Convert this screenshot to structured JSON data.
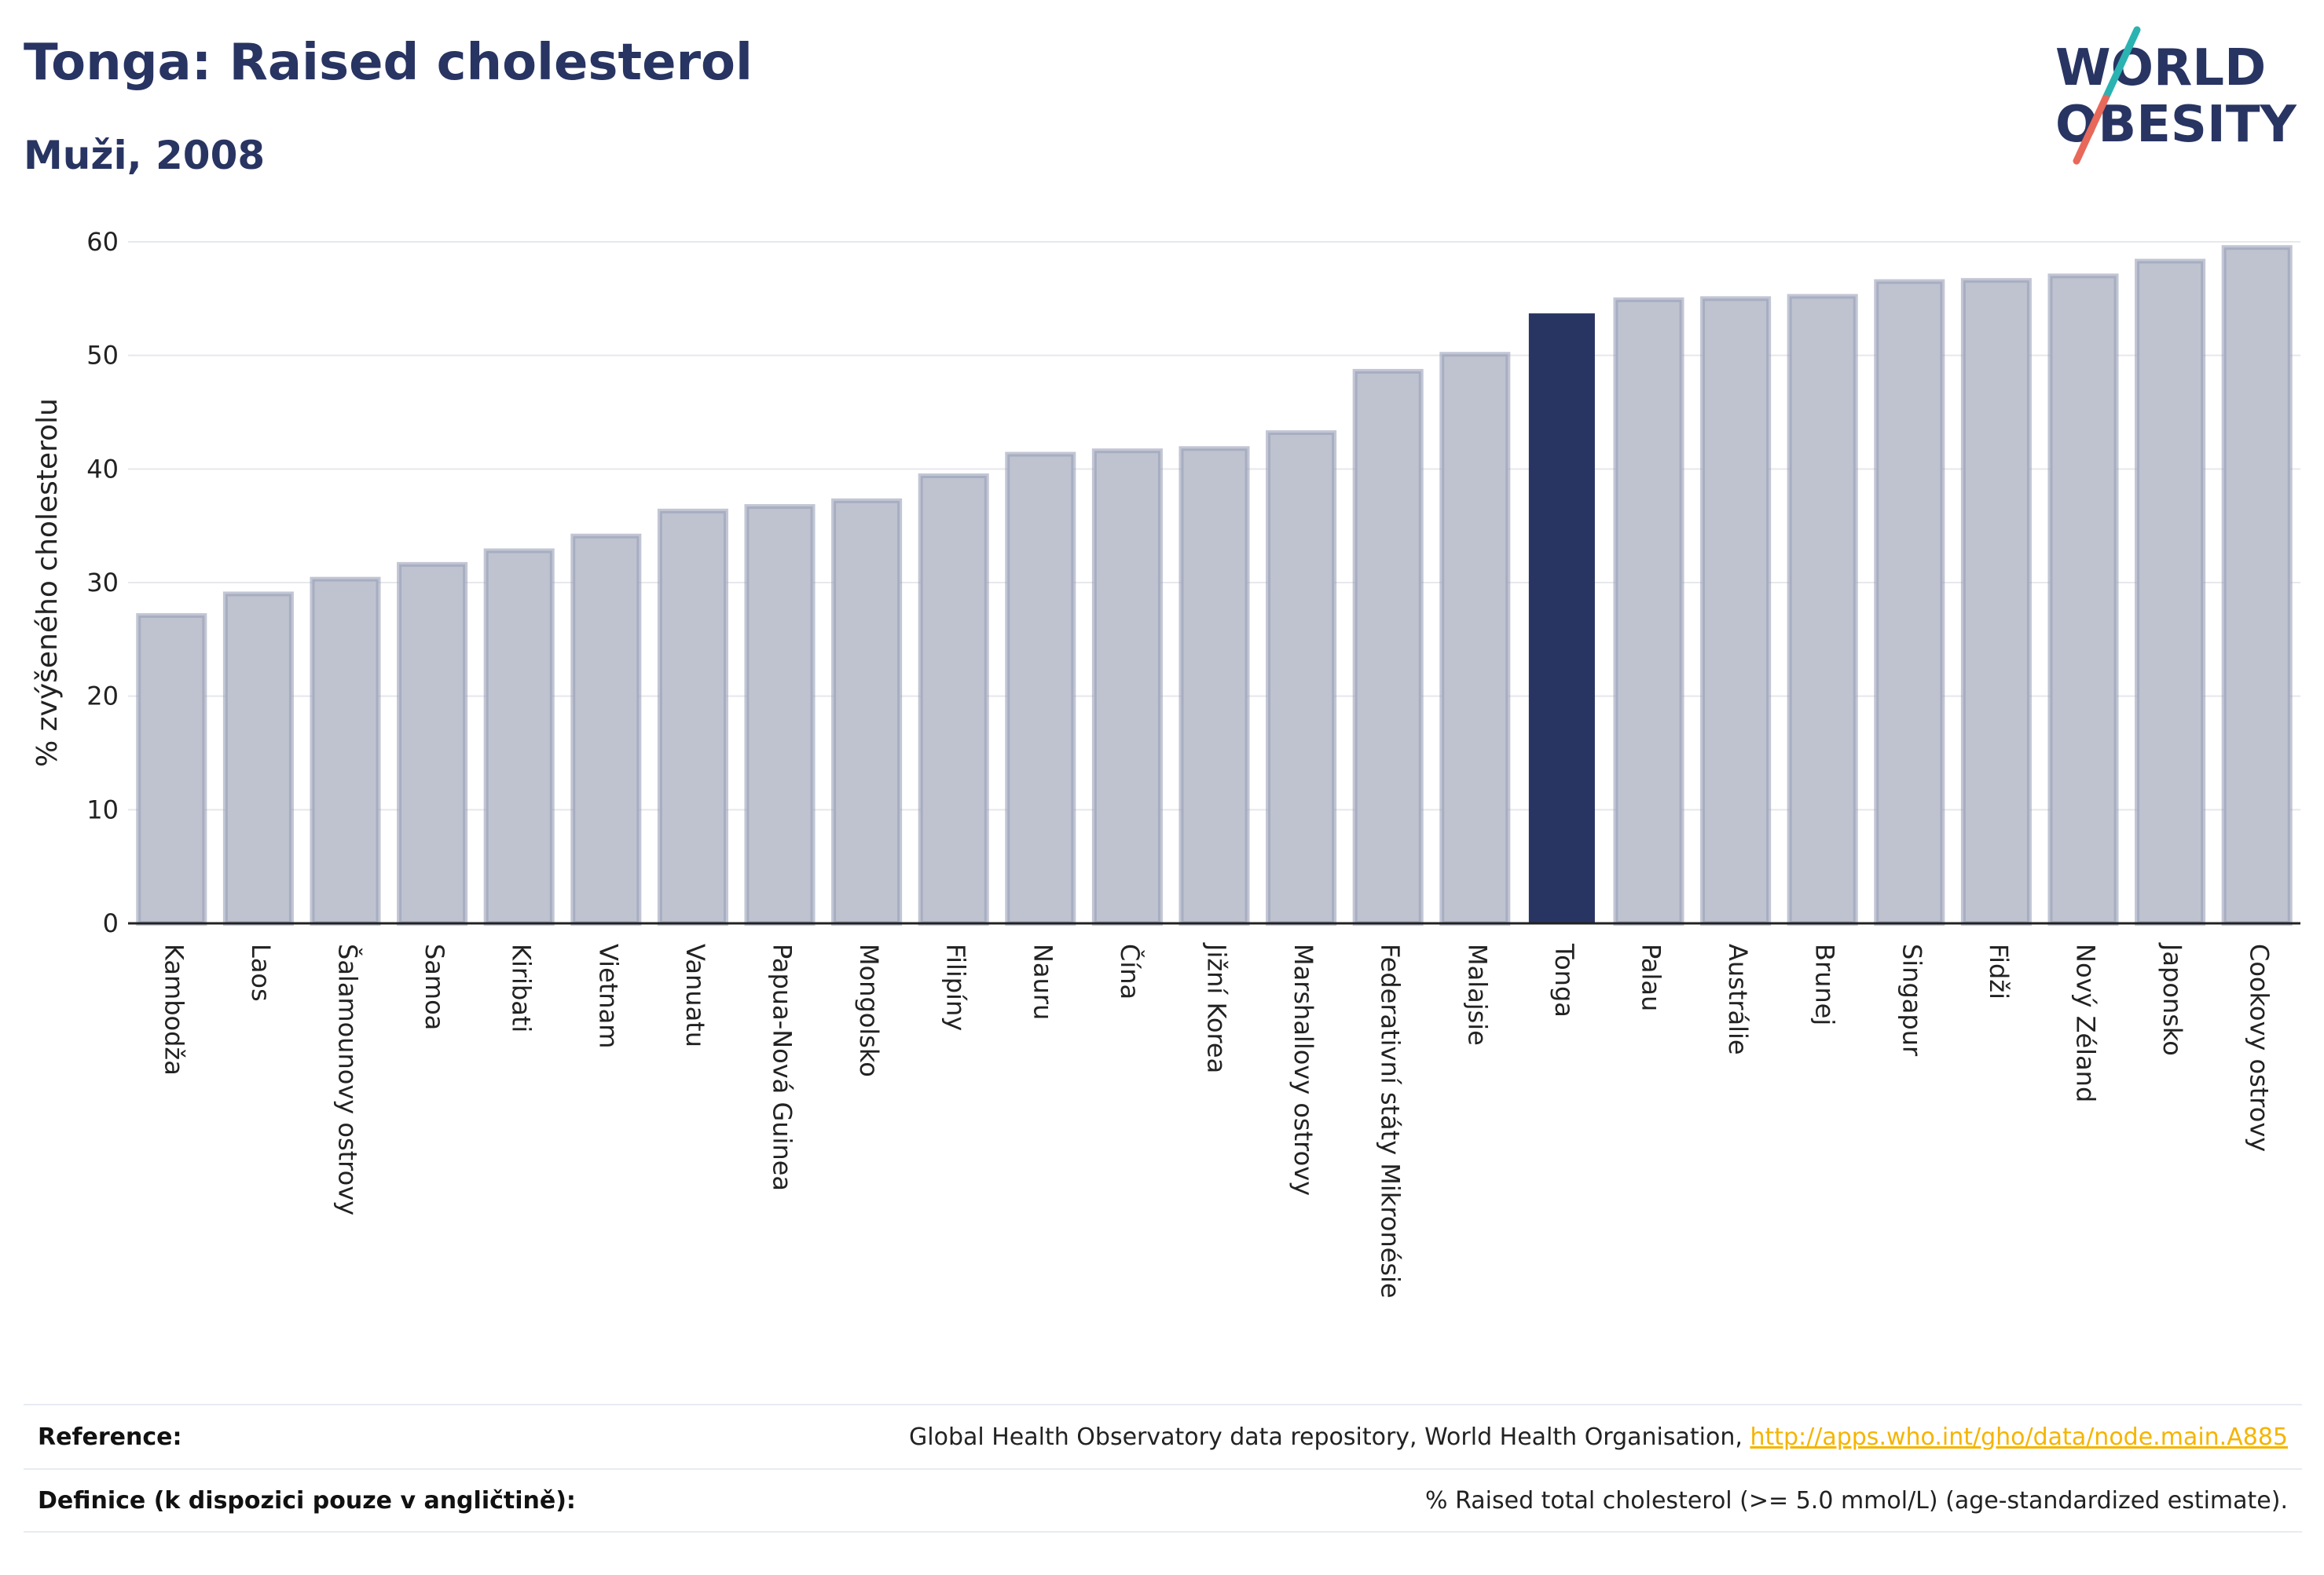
{
  "header": {
    "title": "Tonga: Raised cholesterol",
    "subtitle": "Muži, 2008"
  },
  "logo": {
    "line1": "WORLD",
    "line2": "OBESITY",
    "text_color": "#283462",
    "accent_teal": "#2ab3b1",
    "accent_coral": "#e8685a"
  },
  "colors": {
    "bar_fill": "#bfc3d0",
    "bar_stroke": "#9aa0b8",
    "highlight_fill": "#283462",
    "grid": "#e6e8ee",
    "axis": "#222222"
  },
  "chart_data": {
    "type": "bar",
    "title": "Tonga: Raised cholesterol",
    "subtitle": "Muži, 2008",
    "xlabel": "",
    "ylabel": "% zvýšeného cholesterolu",
    "ylim": [
      0,
      60
    ],
    "yticks": [
      0,
      10,
      20,
      30,
      40,
      50,
      60
    ],
    "grid": true,
    "highlight": "Tonga",
    "categories": [
      "Kambodža",
      "Laos",
      "Šalamounovy ostrovy",
      "Samoa",
      "Kiribati",
      "Vietnam",
      "Vanuatu",
      "Papua-Nová Guinea",
      "Mongolsko",
      "Filipíny",
      "Nauru",
      "Čína",
      "Jižní Korea",
      "Marshallovy ostrovy",
      "Federativní státy Mikronésie",
      "Malajsie",
      "Tonga",
      "Palau",
      "Austrálie",
      "Brunej",
      "Singapur",
      "Fidži",
      "Nový Zéland",
      "Japonsko",
      "Cookovy ostrovy"
    ],
    "values": [
      27.1,
      29.0,
      30.3,
      31.6,
      32.8,
      34.1,
      36.3,
      36.7,
      37.2,
      39.4,
      41.3,
      41.6,
      41.8,
      43.2,
      48.6,
      50.1,
      53.7,
      54.9,
      55.0,
      55.2,
      56.5,
      56.6,
      57.0,
      58.3,
      59.5
    ]
  },
  "footer": {
    "reference_label": "Reference:",
    "reference_text": "Global Health Observatory data repository, World Health Organisation, ",
    "reference_link": "http://apps.who.int/gho/data/node.main.A885",
    "definition_label": "Definice (k dispozici pouze v angličtině):",
    "definition_text": "% Raised total cholesterol (>= 5.0 mmol/L) (age-standardized estimate)."
  }
}
